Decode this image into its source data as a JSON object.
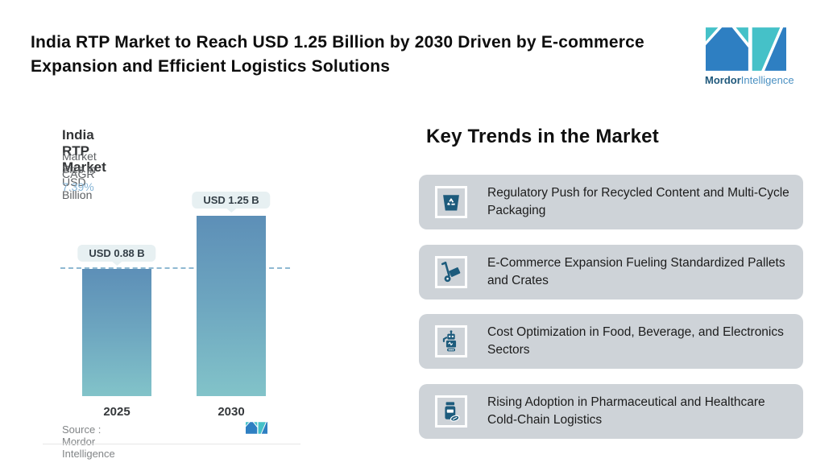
{
  "header": {
    "title": "India RTP Market to Reach USD 1.25 Billion by 2030 Driven by E-commerce Expansion and Efficient Logistics Solutions"
  },
  "brand": {
    "name_bold": "Mordor",
    "name_light": "Intelligence"
  },
  "chart_data": {
    "type": "bar",
    "title": "India RTP Market",
    "subtitle": "Market Size in USD Billion",
    "cagr_label": "CAGR",
    "cagr_value": "7.39%",
    "categories": [
      "2025",
      "2030"
    ],
    "values": [
      0.88,
      1.25
    ],
    "value_labels": [
      "USD 0.88 B",
      "USD 1.25 B"
    ],
    "ylabel": "Market Size in USD Billion",
    "reference_line_value": 0.88,
    "grid": "off",
    "source": "Source :  Mordor Intelligence"
  },
  "trends": {
    "heading": "Key Trends in the Market",
    "items": [
      {
        "icon": "recycle-bin",
        "text": "Regulatory Push for Recycled Content and Multi-Cycle Packaging"
      },
      {
        "icon": "hand-truck",
        "text": "E-Commerce Expansion Fueling Standardized Pallets and Crates"
      },
      {
        "icon": "robot",
        "text": "Cost Optimization in Food, Beverage, and Electronics Sectors"
      },
      {
        "icon": "medicine-bottle",
        "text": "Rising Adoption in Pharmaceutical and Healthcare Cold-Chain Logistics"
      }
    ]
  },
  "colors": {
    "bar_top": "#5d8fb7",
    "bar_bottom": "#82c3c9",
    "card_bg": "#ced3d8",
    "icon_blue": "#1d5b7c",
    "cagr_value": "#85b4d6",
    "dashed_line": "#8fb9d2",
    "logo_blue": "#2e7fc2",
    "logo_teal": "#45c1c8"
  }
}
